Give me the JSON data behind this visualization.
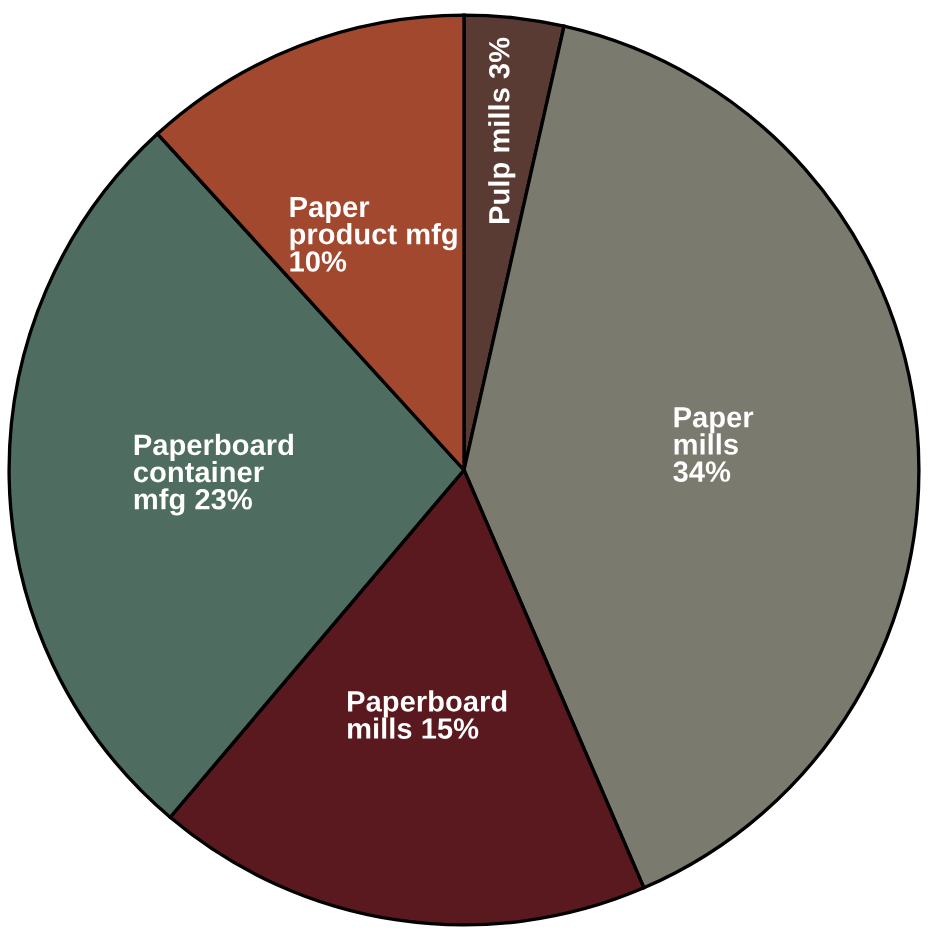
{
  "chart_data": {
    "type": "pie",
    "categories": [
      "Pulp mills 3%",
      "Paper\nmills\n34%",
      "Paperboard\nmills 15%",
      "Paperboard\ncontainer\nmfg 23%",
      "Paper\nproduct mfg\n10%"
    ],
    "values": [
      3,
      34,
      15,
      23,
      10
    ],
    "colors": [
      "#5a3b33",
      "#7b7a6f",
      "#5a191e",
      "#4e6d60",
      "#a1482e"
    ]
  }
}
